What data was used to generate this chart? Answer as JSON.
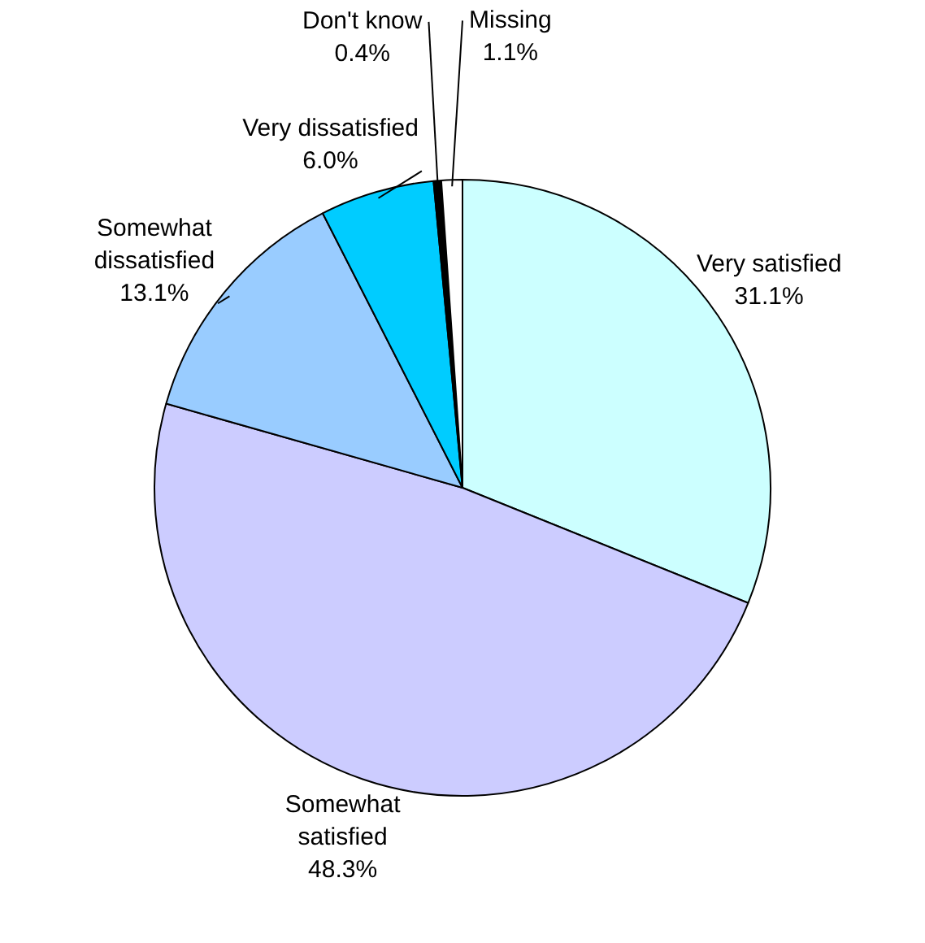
{
  "chart_data": {
    "type": "pie",
    "categories": [
      "Very satisfied",
      "Somewhat satisfied",
      "Somewhat dissatisfied",
      "Very dissatisfied",
      "Don't know",
      "Missing"
    ],
    "values": [
      31.1,
      48.3,
      13.1,
      6.0,
      0.4,
      1.1
    ],
    "value_labels": [
      "31.1%",
      "48.3%",
      "13.1%",
      "6.0%",
      "0.4%",
      "1.1%"
    ],
    "colors": [
      "#ccffff",
      "#ccccff",
      "#99ccff",
      "#00ccff",
      "#000000",
      "#ffffff"
    ],
    "legend": false
  }
}
